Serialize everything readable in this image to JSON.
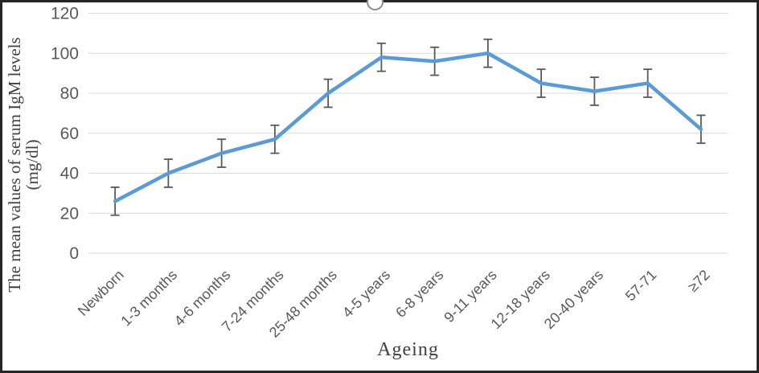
{
  "chart_data": {
    "type": "line",
    "title": "",
    "categories": [
      "Newborn",
      "1-3 months",
      "4-6 months",
      "7-24 months",
      "25-48 months",
      "4-5 years",
      "6-8 years",
      "9-11 years",
      "12-18 years",
      "20-40 years",
      "57-71",
      "≥72"
    ],
    "series": [
      {
        "name": "Mean serum IgM level",
        "values": [
          26,
          40,
          50,
          57,
          80,
          98,
          96,
          100,
          85,
          81,
          85,
          62
        ],
        "errors": [
          7,
          7,
          7,
          7,
          7,
          7,
          7,
          7,
          7,
          7,
          7,
          7
        ]
      }
    ],
    "xlabel": "Ageing",
    "ylabel": "The mean values of serum IgM levels (mg/dl)",
    "ylabel_lines": {
      "line1": "The mean values of serum IgM levels",
      "line2": "(mg/dl)"
    },
    "ylim": [
      0,
      120
    ],
    "yticks": [
      0,
      20,
      40,
      60,
      80,
      100,
      120
    ],
    "grid": true,
    "legend": false,
    "error_bars": true,
    "x_label_rotation_deg": 45
  },
  "styles": {
    "line_color": "#5B9BD5",
    "error_bar_color": "#595959",
    "grid_color": "#D9D9D9",
    "tick_label_color": "#595959",
    "axis_title_color": "#404040",
    "frame_border_color": "#262626",
    "handle_stroke_color": "#8C8C8C"
  },
  "decorations": {
    "selection_handle_position": "top-center"
  }
}
